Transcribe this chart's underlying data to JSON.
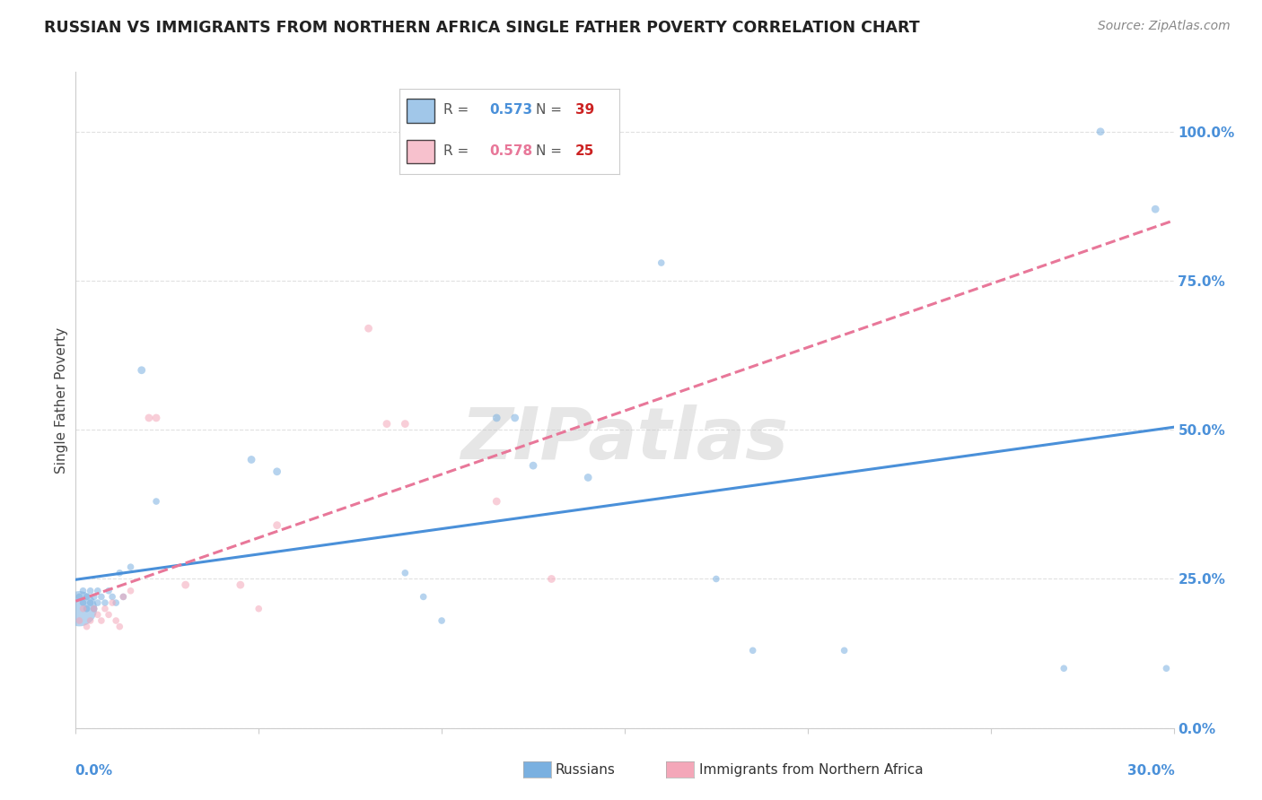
{
  "title": "RUSSIAN VS IMMIGRANTS FROM NORTHERN AFRICA SINGLE FATHER POVERTY CORRELATION CHART",
  "source": "Source: ZipAtlas.com",
  "ylabel": "Single Father Poverty",
  "watermark": "ZIPatlas",
  "color_russian": "#7ab0e0",
  "color_immigrant": "#f4a7b9",
  "color_russian_line": "#4a90d9",
  "color_immigrant_line": "#e87799",
  "background_color": "#ffffff",
  "grid_color": "#e0e0e0",
  "xlim": [
    0.0,
    0.3
  ],
  "ylim": [
    0.0,
    1.1
  ],
  "russian_x": [
    0.001,
    0.001,
    0.002,
    0.002,
    0.003,
    0.003,
    0.004,
    0.004,
    0.005,
    0.005,
    0.006,
    0.006,
    0.007,
    0.008,
    0.009,
    0.01,
    0.011,
    0.012,
    0.013,
    0.015,
    0.018,
    0.022,
    0.048,
    0.055,
    0.09,
    0.095,
    0.1,
    0.115,
    0.12,
    0.125,
    0.14,
    0.16,
    0.175,
    0.185,
    0.21,
    0.27,
    0.28,
    0.295,
    0.298
  ],
  "russian_y": [
    0.2,
    0.22,
    0.21,
    0.23,
    0.2,
    0.22,
    0.21,
    0.23,
    0.2,
    0.22,
    0.21,
    0.23,
    0.22,
    0.21,
    0.23,
    0.22,
    0.21,
    0.26,
    0.22,
    0.27,
    0.6,
    0.38,
    0.45,
    0.43,
    0.26,
    0.22,
    0.18,
    0.52,
    0.52,
    0.44,
    0.42,
    0.78,
    0.25,
    0.13,
    0.13,
    0.1,
    1.0,
    0.87,
    0.1
  ],
  "russian_sizes": [
    800,
    30,
    30,
    30,
    30,
    30,
    30,
    30,
    30,
    30,
    30,
    30,
    30,
    30,
    30,
    30,
    30,
    30,
    30,
    30,
    40,
    30,
    40,
    40,
    30,
    30,
    30,
    40,
    40,
    40,
    40,
    30,
    30,
    30,
    30,
    30,
    40,
    40,
    30
  ],
  "immigrant_x": [
    0.001,
    0.002,
    0.003,
    0.004,
    0.005,
    0.006,
    0.007,
    0.008,
    0.009,
    0.01,
    0.011,
    0.012,
    0.013,
    0.015,
    0.02,
    0.022,
    0.03,
    0.045,
    0.05,
    0.055,
    0.08,
    0.085,
    0.09,
    0.115,
    0.13
  ],
  "immigrant_y": [
    0.18,
    0.2,
    0.17,
    0.18,
    0.2,
    0.19,
    0.18,
    0.2,
    0.19,
    0.21,
    0.18,
    0.17,
    0.22,
    0.23,
    0.52,
    0.52,
    0.24,
    0.24,
    0.2,
    0.34,
    0.67,
    0.51,
    0.51,
    0.38,
    0.25
  ],
  "immigrant_sizes": [
    30,
    30,
    30,
    30,
    30,
    30,
    30,
    30,
    30,
    30,
    30,
    30,
    30,
    30,
    40,
    40,
    40,
    40,
    30,
    40,
    40,
    40,
    40,
    40,
    40
  ],
  "right_ytick_vals": [
    0.0,
    0.25,
    0.5,
    0.75,
    1.0
  ],
  "right_ytick_labels": [
    "0.0%",
    "25.0%",
    "50.0%",
    "75.0%",
    "100.0%"
  ],
  "xtick_vals": [
    0.0,
    0.05,
    0.1,
    0.15,
    0.2,
    0.25,
    0.3
  ]
}
